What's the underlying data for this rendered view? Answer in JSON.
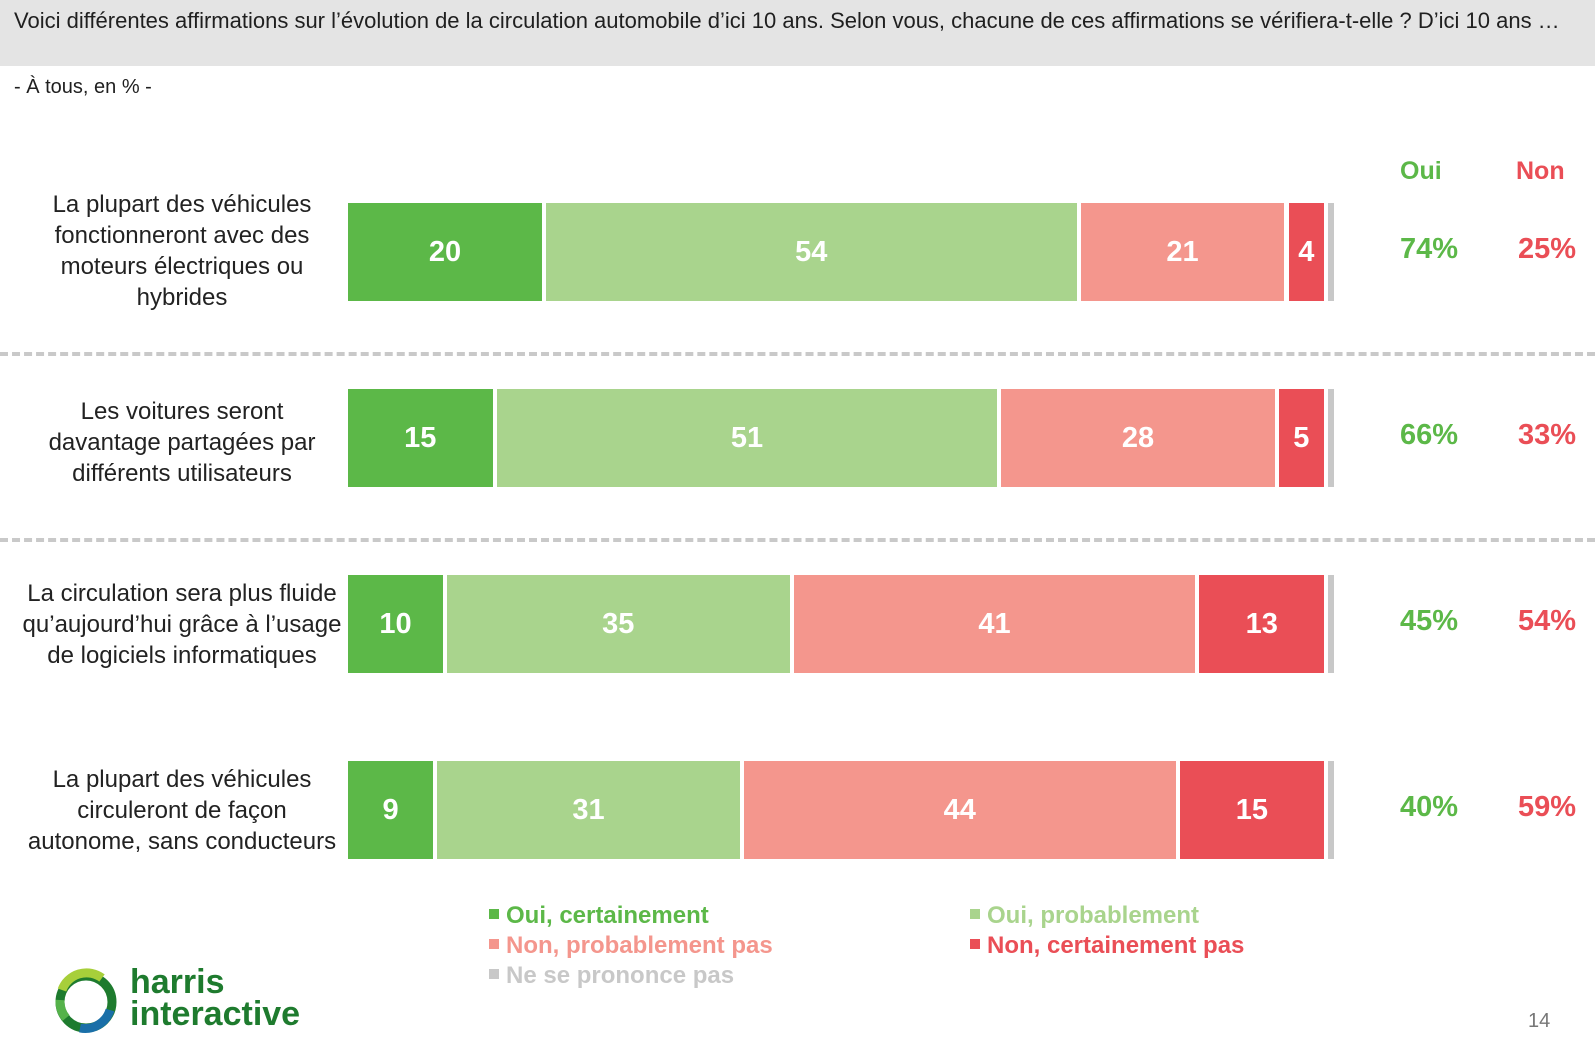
{
  "header": {
    "question": "Voici différentes affirmations sur l’évolution de la circulation automobile d’ici 10 ans. Selon vous, chacune de ces affirmations se vérifiera-t-elle ? D’ici 10 ans …",
    "subtitle": "- À tous, en % -"
  },
  "columns": {
    "oui": "Oui",
    "non": "Non"
  },
  "colors": {
    "oui_certainement": "#5cb848",
    "oui_probablement": "#a9d48d",
    "non_probablement_pas": "#f4968d",
    "non_certainement_pas": "#ea4e56",
    "ne_se_prononce_pas": "#c8c8c8",
    "oui_text": "#5cb848",
    "non_text": "#ea4e56"
  },
  "chart_data": {
    "type": "bar",
    "orientation": "horizontal",
    "stacked": true,
    "categories": [
      "La plupart des véhicules fonctionneront avec des moteurs électriques ou hybrides",
      "Les voitures seront davantage partagées par différents utilisateurs",
      "La circulation sera plus fluide qu’aujourd’hui grâce à l’usage de logiciels informatiques",
      "La plupart des véhicules circuleront de façon autonome, sans conducteurs"
    ],
    "series": [
      {
        "name": "Oui, certainement",
        "values": [
          20,
          15,
          10,
          9
        ]
      },
      {
        "name": "Oui, probablement",
        "values": [
          54,
          51,
          35,
          31
        ]
      },
      {
        "name": "Non, probablement pas",
        "values": [
          21,
          28,
          41,
          44
        ]
      },
      {
        "name": "Non, certainement pas",
        "values": [
          4,
          5,
          13,
          15
        ]
      },
      {
        "name": "Ne se prononce pas",
        "values": [
          1,
          1,
          1,
          1
        ]
      }
    ],
    "totals_oui": [
      "74%",
      "66%",
      "45%",
      "40%"
    ],
    "totals_non": [
      "25%",
      "33%",
      "54%",
      "59%"
    ],
    "legend_position": "bottom",
    "xlim": [
      0,
      100
    ]
  },
  "footer": {
    "logo_line1": "harris",
    "logo_line2": "interactive",
    "page_number": "14"
  }
}
